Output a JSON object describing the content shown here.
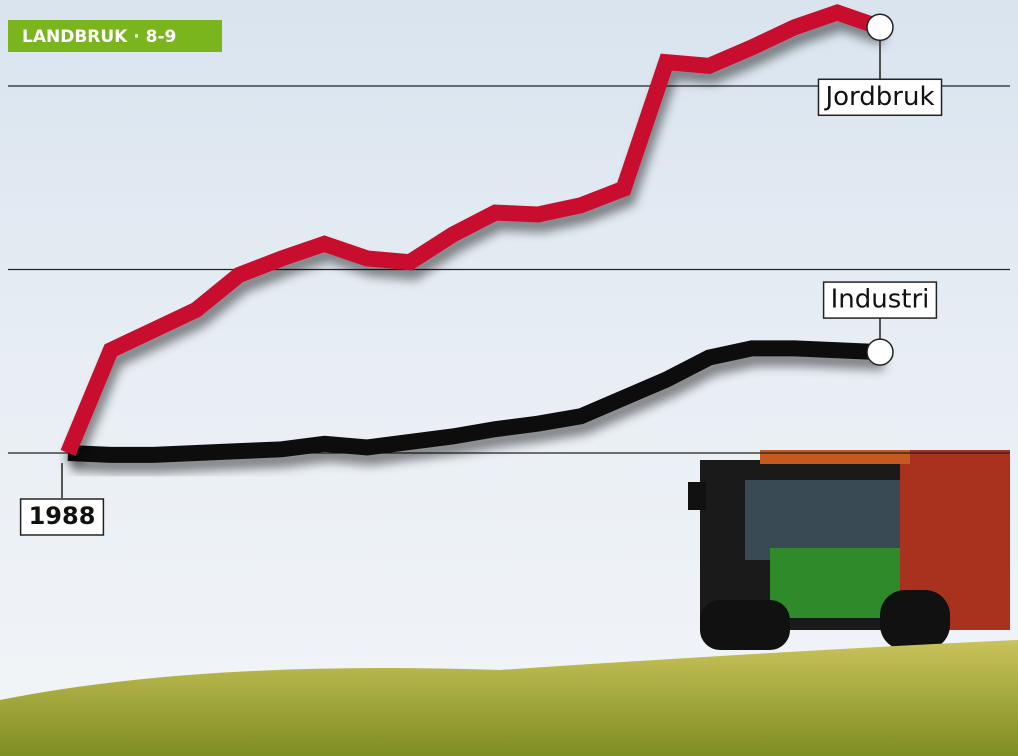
{
  "chart_data": {
    "type": "line",
    "tag": "LANDBRUK · 8-9",
    "categories": [
      "1988",
      null,
      null,
      null,
      null,
      null,
      null,
      null,
      null,
      null,
      null,
      null,
      null,
      null,
      null,
      null,
      null,
      null,
      null,
      null
    ],
    "series": [
      {
        "name": "Jordbruk",
        "color": "#c8102e",
        "values": [
          100,
          156,
          167,
          178,
          197,
          206,
          214,
          206,
          204,
          219,
          231,
          230,
          235,
          244,
          313,
          311,
          321,
          332,
          340,
          332
        ]
      },
      {
        "name": "Industri",
        "color": "#111111",
        "values": [
          100,
          99,
          99,
          100,
          101,
          102,
          105,
          103,
          106,
          109,
          113,
          116,
          120,
          130,
          140,
          152,
          157,
          157,
          156,
          155
        ]
      }
    ],
    "ylim": [
      50,
      350
    ],
    "yticks": [
      100,
      200,
      300
    ],
    "grid": true
  }
}
